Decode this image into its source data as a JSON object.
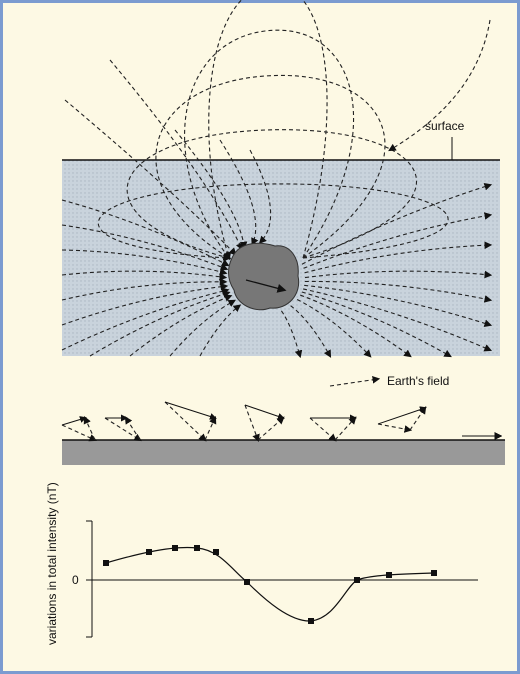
{
  "labels": {
    "surface": "surface",
    "earths_field": "Earth's field",
    "y_axis": "variations in total intensity (nT)",
    "zero": "0"
  }
}
